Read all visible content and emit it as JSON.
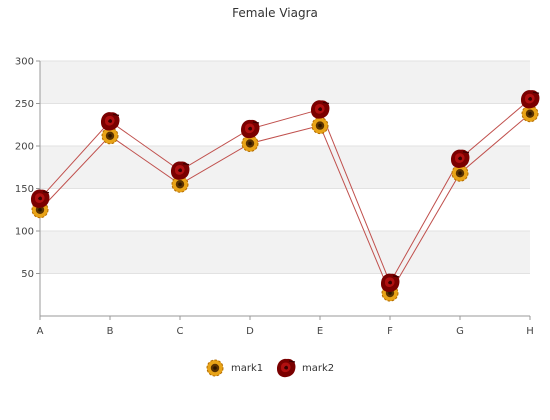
{
  "chart_data": {
    "type": "line",
    "title": "Female Viagra",
    "categories": [
      "A",
      "B",
      "C",
      "D",
      "E",
      "F",
      "G",
      "H"
    ],
    "ylim": [
      0,
      300
    ],
    "yticks": [
      50,
      100,
      150,
      200,
      250,
      300
    ],
    "grid": "horizontal bands",
    "legend_position": "bottom",
    "series": [
      {
        "name": "mark1",
        "values": [
          125,
          212,
          155,
          203,
          224,
          27,
          168,
          238
        ],
        "marker": "sunflower-icon",
        "line_color": "#c0504d"
      },
      {
        "name": "mark2",
        "values": [
          138,
          229,
          171,
          220,
          243,
          39,
          185,
          255
        ],
        "marker": "rose-icon",
        "line_color": "#c0504d"
      }
    ]
  }
}
